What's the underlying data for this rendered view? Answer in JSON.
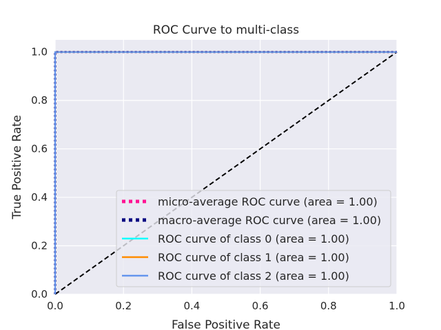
{
  "chart_data": {
    "type": "line",
    "title": "ROC Curve to multi-class",
    "xlabel": "False Positive Rate",
    "ylabel": "True Positive Rate",
    "xlim": [
      0.0,
      1.0
    ],
    "ylim": [
      0.0,
      1.05
    ],
    "grid": true,
    "x_ticks": [
      0.0,
      0.2,
      0.4,
      0.6,
      0.8,
      1.0
    ],
    "x_tick_labels": [
      "0.0",
      "0.2",
      "0.4",
      "0.6",
      "0.8",
      "1.0"
    ],
    "y_ticks": [
      0.0,
      0.2,
      0.4,
      0.6,
      0.8,
      1.0
    ],
    "y_tick_labels": [
      "0.0",
      "0.2",
      "0.4",
      "0.6",
      "0.8",
      "1.0"
    ],
    "legend_position": "lower-right",
    "series": [
      {
        "name": "micro-average ROC curve (area = 1.00)",
        "color": "#ff1493",
        "style": "dotted",
        "x": [
          0.0,
          0.0,
          1.0
        ],
        "y": [
          0.0,
          1.0,
          1.0
        ]
      },
      {
        "name": "macro-average ROC curve (area = 1.00)",
        "color": "#000080",
        "style": "dotted",
        "x": [
          0.0,
          0.0,
          1.0
        ],
        "y": [
          0.0,
          1.0,
          1.0
        ]
      },
      {
        "name": "ROC curve of class 0 (area = 1.00)",
        "color": "#00ffff",
        "style": "solid",
        "x": [
          0.0,
          0.0,
          1.0
        ],
        "y": [
          0.0,
          1.0,
          1.0
        ]
      },
      {
        "name": "ROC curve of class 1 (area = 1.00)",
        "color": "#ff8c00",
        "style": "solid",
        "x": [
          0.0,
          0.0,
          1.0
        ],
        "y": [
          0.0,
          1.0,
          1.0
        ]
      },
      {
        "name": "ROC curve of class 2 (area = 1.00)",
        "color": "#6495ed",
        "style": "solid",
        "x": [
          0.0,
          0.0,
          1.0
        ],
        "y": [
          0.0,
          1.0,
          1.0
        ]
      }
    ],
    "reference_line": {
      "color": "#000000",
      "style": "dashed",
      "x": [
        0.0,
        1.0
      ],
      "y": [
        0.0,
        1.0
      ]
    }
  }
}
